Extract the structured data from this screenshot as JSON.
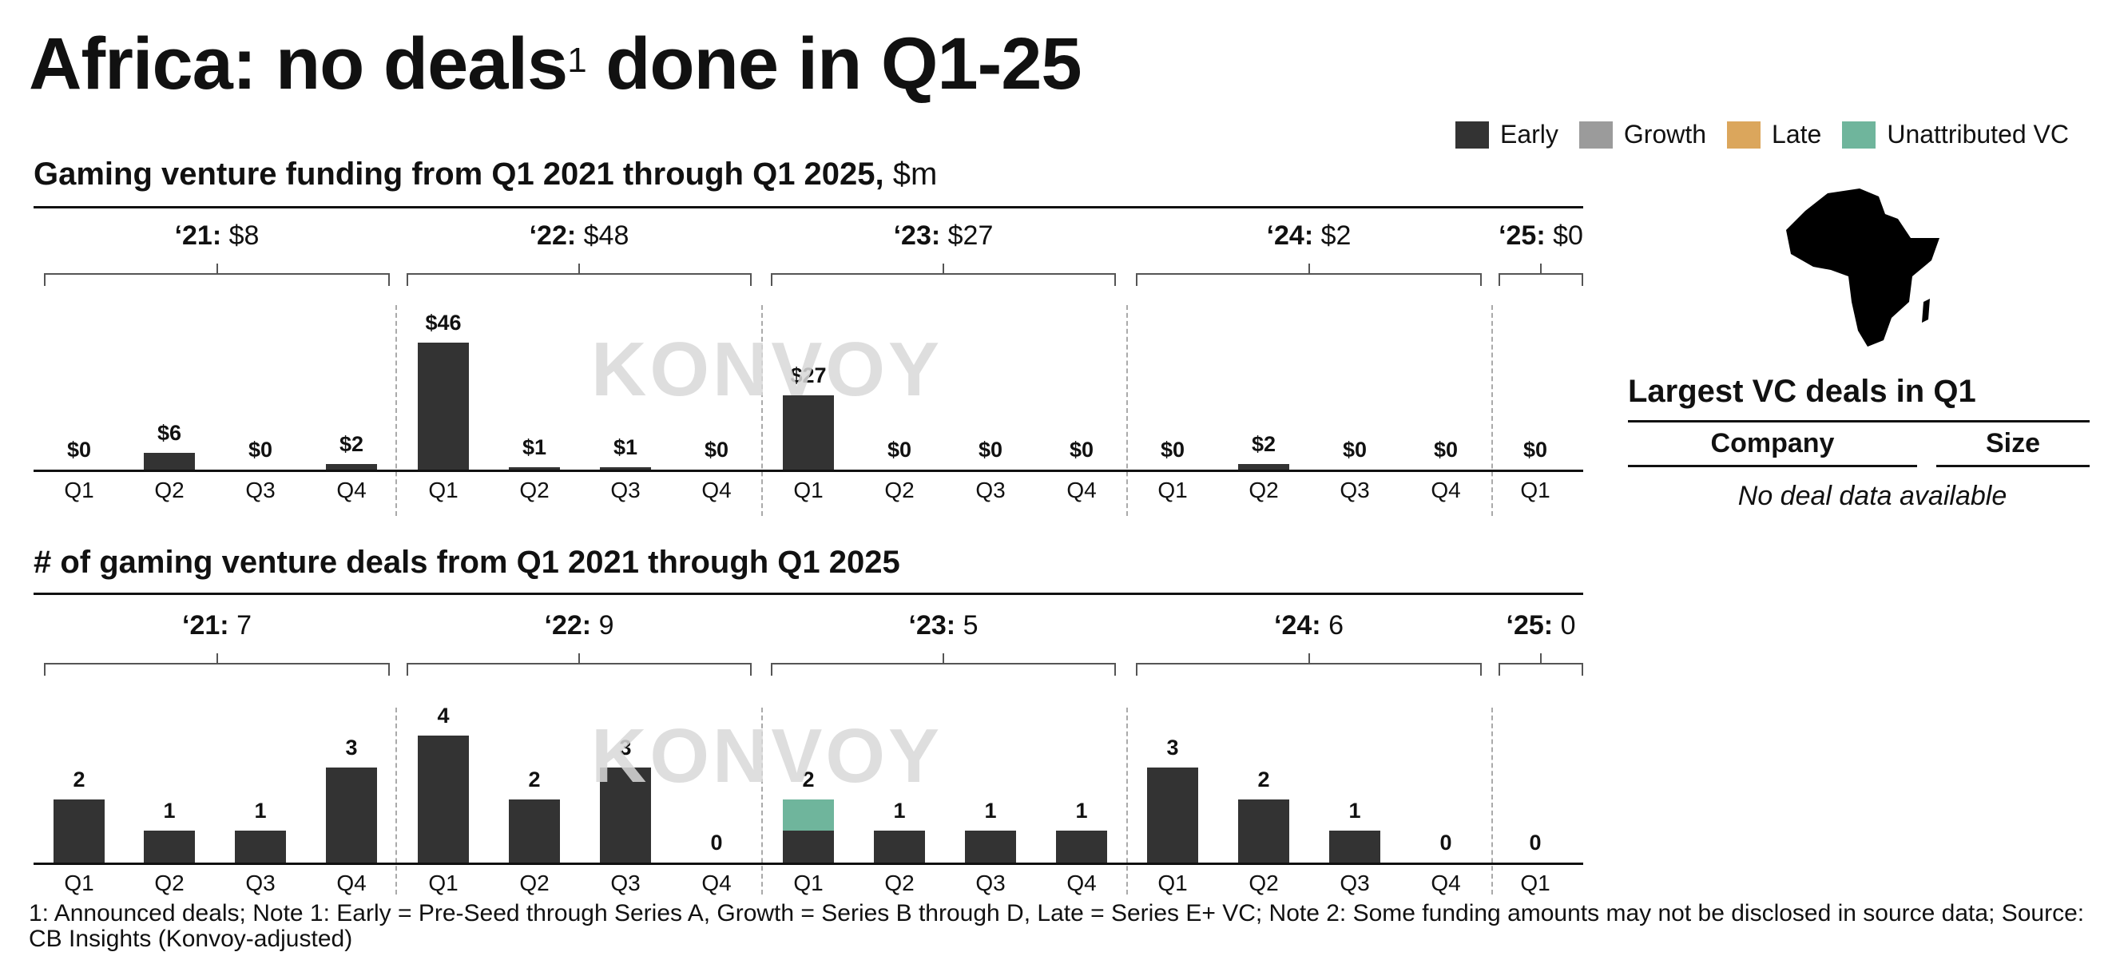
{
  "title": {
    "main_prefix": "Africa: no deals",
    "superscript": "1",
    "main_suffix": " done in Q1-25"
  },
  "legend": [
    {
      "label": "Early",
      "color": "#333333"
    },
    {
      "label": "Growth",
      "color": "#9b9b9b"
    },
    {
      "label": "Late",
      "color": "#dba65c"
    },
    {
      "label": "Unattributed VC",
      "color": "#6fb59c"
    }
  ],
  "watermark": "KONVOY",
  "side_panel": {
    "title": "Largest VC deals in Q1",
    "columns": [
      "Company",
      "Size"
    ],
    "empty_text": "No deal data available"
  },
  "footnote": "1: Announced deals; Note 1: Early = Pre-Seed through Series A, Growth = Series B through D, Late = Series E+ VC; Note 2: Some funding amounts may not be disclosed in source data; Source: CB Insights (Konvoy-adjusted)",
  "chart_data": [
    {
      "type": "bar",
      "title": "Gaming venture funding from Q1 2021 through Q1 2025,",
      "unit": "$m",
      "categories": [
        "Q1",
        "Q2",
        "Q3",
        "Q4",
        "Q1",
        "Q2",
        "Q3",
        "Q4",
        "Q1",
        "Q2",
        "Q3",
        "Q4",
        "Q1",
        "Q2",
        "Q3",
        "Q4",
        "Q1"
      ],
      "year_groups": [
        {
          "year": "‘21:",
          "total": "$8",
          "start": 0,
          "count": 4
        },
        {
          "year": "‘22:",
          "total": "$48",
          "start": 4,
          "count": 4
        },
        {
          "year": "‘23:",
          "total": "$27",
          "start": 8,
          "count": 4
        },
        {
          "year": "‘24:",
          "total": "$2",
          "start": 12,
          "count": 4
        },
        {
          "year": "‘25:",
          "total": "$0",
          "start": 16,
          "count": 1
        }
      ],
      "series": [
        {
          "name": "Early",
          "values": [
            0,
            6,
            0,
            2,
            46,
            1,
            1,
            0,
            27,
            0,
            0,
            0,
            0,
            2,
            0,
            0,
            0
          ]
        },
        {
          "name": "Unattributed VC",
          "values": [
            0,
            0,
            0,
            0,
            0,
            0,
            0,
            0,
            0,
            0,
            0,
            0,
            0,
            0,
            0,
            0,
            0
          ]
        }
      ],
      "labels": [
        "$0",
        "$6",
        "$0",
        "$2",
        "$46",
        "$1",
        "$1",
        "$0",
        "$27",
        "$0",
        "$0",
        "$0",
        "$0",
        "$2",
        "$0",
        "$0",
        "$0"
      ],
      "ylim": [
        0,
        46
      ]
    },
    {
      "type": "bar",
      "title": "# of gaming venture deals from Q1 2021 through Q1 2025",
      "unit": "",
      "categories": [
        "Q1",
        "Q2",
        "Q3",
        "Q4",
        "Q1",
        "Q2",
        "Q3",
        "Q4",
        "Q1",
        "Q2",
        "Q3",
        "Q4",
        "Q1",
        "Q2",
        "Q3",
        "Q4",
        "Q1"
      ],
      "year_groups": [
        {
          "year": "‘21:",
          "total": "7",
          "start": 0,
          "count": 4
        },
        {
          "year": "‘22:",
          "total": "9",
          "start": 4,
          "count": 4
        },
        {
          "year": "‘23:",
          "total": "5",
          "start": 8,
          "count": 4
        },
        {
          "year": "‘24:",
          "total": "6",
          "start": 12,
          "count": 4
        },
        {
          "year": "‘25:",
          "total": "0",
          "start": 16,
          "count": 1
        }
      ],
      "series": [
        {
          "name": "Early",
          "values": [
            2,
            1,
            1,
            3,
            4,
            2,
            3,
            0,
            1,
            1,
            1,
            1,
            3,
            2,
            1,
            0,
            0
          ]
        },
        {
          "name": "Unattributed VC",
          "values": [
            0,
            0,
            0,
            0,
            0,
            0,
            0,
            0,
            1,
            0,
            0,
            0,
            0,
            0,
            0,
            0,
            0
          ]
        }
      ],
      "labels": [
        "2",
        "1",
        "1",
        "3",
        "4",
        "2",
        "3",
        "0",
        "2",
        "1",
        "1",
        "1",
        "3",
        "2",
        "1",
        "0",
        "0"
      ],
      "ylim": [
        0,
        4
      ]
    }
  ]
}
